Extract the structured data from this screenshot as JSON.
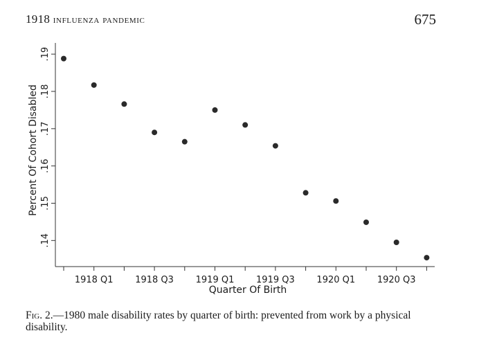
{
  "header": {
    "year": "1918",
    "title": "INFLUENZA PANDEMIC",
    "page_number": "675"
  },
  "chart_data": {
    "type": "scatter",
    "xlabel": "Quarter Of Birth",
    "ylabel": "Percent Of Cohort Disabled",
    "x_tick_labels": [
      "1918 Q1",
      "1918 Q3",
      "1919 Q1",
      "1919 Q3",
      "1920 Q1",
      "1920 Q3"
    ],
    "y_tick_labels": [
      ".14",
      ".15",
      ".16",
      ".17",
      ".18",
      ".19"
    ],
    "y_ticks": [
      0.14,
      0.15,
      0.16,
      0.17,
      0.18,
      0.19
    ],
    "ylim": [
      0.133,
      0.193
    ],
    "categories": [
      "1917 Q4",
      "1918 Q1",
      "1918 Q2",
      "1918 Q3",
      "1918 Q4",
      "1919 Q1",
      "1919 Q2",
      "1919 Q3",
      "1919 Q4",
      "1920 Q1",
      "1920 Q2",
      "1920 Q3",
      "1920 Q4"
    ],
    "values": [
      0.1888,
      0.1817,
      0.1766,
      0.169,
      0.1665,
      0.175,
      0.171,
      0.1654,
      0.1528,
      0.1506,
      0.1449,
      0.1395,
      0.1354
    ],
    "grid": false,
    "legend": "none",
    "marker_color": "#2a2a2a",
    "axis_color": "#333333"
  },
  "caption": {
    "label": "Fig. 2.",
    "text": "—1980 male disability rates by quarter of birth: prevented from work by a physical disability."
  }
}
